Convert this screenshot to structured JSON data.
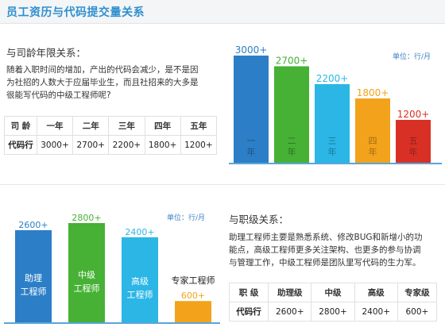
{
  "header": {
    "title": "员工资历与代码提交量关系"
  },
  "seniority": {
    "section_title": "与司龄年限关系：",
    "paragraph_lines": [
      "随着入职时间的增加，产出的代码会减少，是不是因",
      "为社招的人数大于应届毕业生，而且社招来的大多是",
      "很能写代码的中级工程师呢?"
    ],
    "table": {
      "header": [
        "司 龄",
        "一年",
        "二年",
        "三年",
        "四年",
        "五年"
      ],
      "row": [
        "代码行",
        "3000+",
        "2700+",
        "2200+",
        "1800+",
        "1200+"
      ]
    },
    "unit": "单位：行/月"
  },
  "level": {
    "section_title": "与职级关系：",
    "paragraph_lines": [
      "助理工程师主要是熟悉系统、修改BUG和新增小的功",
      "能点，高级工程师更多关注架构、也更多的参与协调",
      "与管理工作，中级工程师是团队里写代码的生力军。"
    ],
    "table": {
      "header": [
        "职 级",
        "助理级",
        "中级",
        "高级",
        "专家级"
      ],
      "row": [
        "代码行",
        "2600+",
        "2800+",
        "2400+",
        "600+"
      ]
    },
    "unit": "单位：行/月"
  },
  "chart_data": [
    {
      "type": "bar",
      "categories": [
        "一年",
        "二年",
        "三年",
        "四年",
        "五年"
      ],
      "values": [
        3000,
        2700,
        2200,
        1800,
        1200
      ],
      "data_labels": [
        "3000+",
        "2700+",
        "2200+",
        "1800+",
        "1200+"
      ],
      "ylabel": "单位：行/月",
      "colors": [
        "#2c7fc6",
        "#46b134",
        "#2bb6e6",
        "#f2a31b",
        "#d93026"
      ],
      "grid": false
    },
    {
      "type": "bar",
      "categories": [
        "助理工程师",
        "中级工程师",
        "高级工程师",
        "专家工程师"
      ],
      "values": [
        2600,
        2800,
        2400,
        600
      ],
      "data_labels": [
        "2600+",
        "2800+",
        "2400+",
        "600+"
      ],
      "ylabel": "单位：行/月",
      "colors": [
        "#2c7fc6",
        "#46b134",
        "#2bb6e6",
        "#f2a31b"
      ],
      "grid": false
    }
  ]
}
